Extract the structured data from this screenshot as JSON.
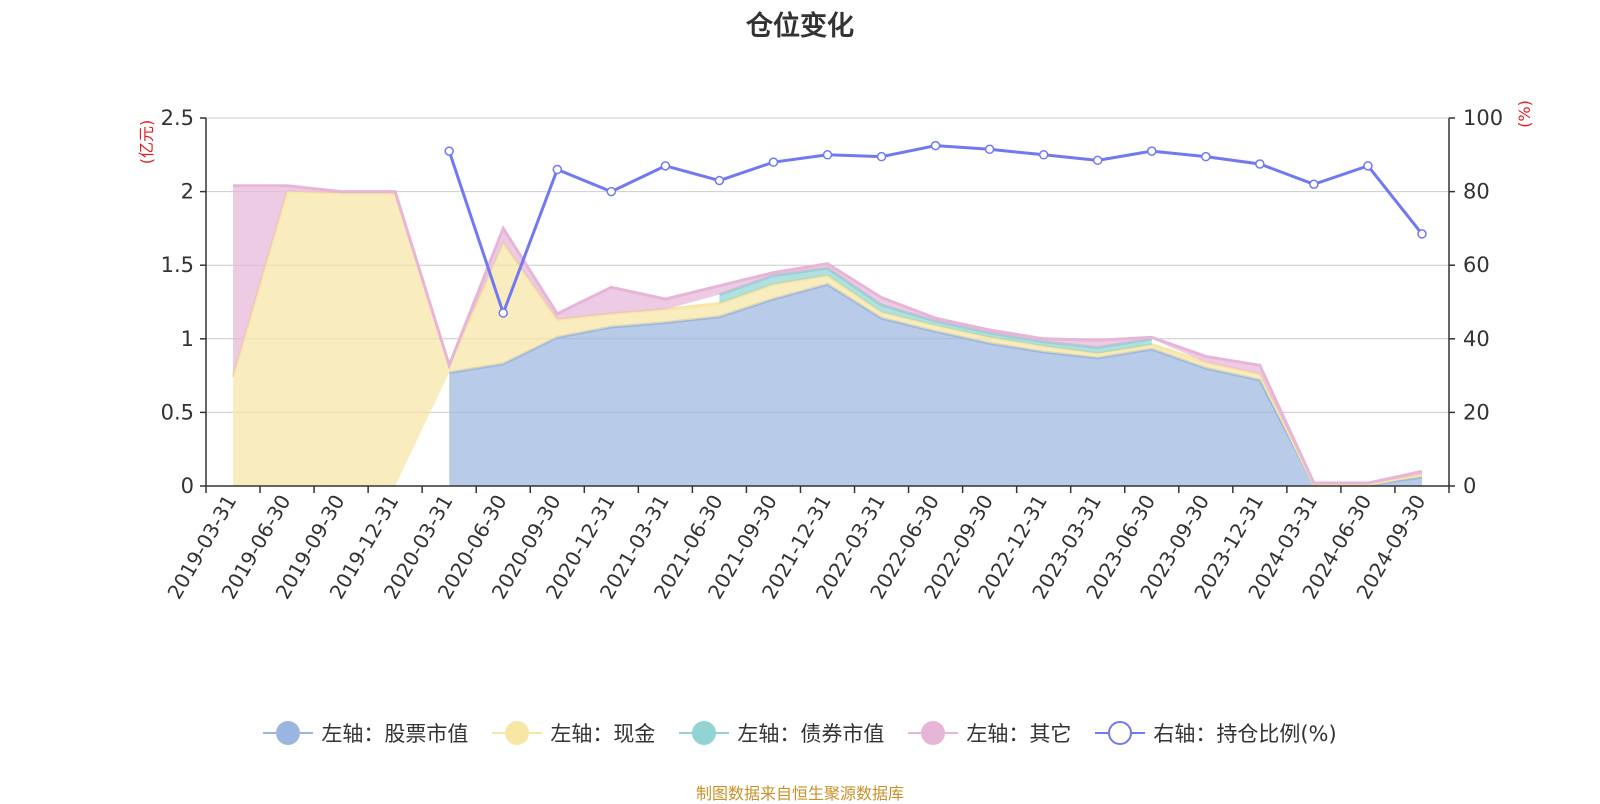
{
  "chart_data": {
    "type": "area",
    "title": "仓位变化",
    "left_axis_unit": "(亿元)",
    "right_axis_unit": "(%)",
    "categories": [
      "2019-03-31",
      "2019-06-30",
      "2019-09-30",
      "2019-12-31",
      "2020-03-31",
      "2020-06-30",
      "2020-09-30",
      "2020-12-31",
      "2021-03-31",
      "2021-06-30",
      "2021-09-30",
      "2021-12-31",
      "2022-03-31",
      "2022-06-30",
      "2022-09-30",
      "2022-12-31",
      "2023-03-31",
      "2023-06-30",
      "2023-09-30",
      "2023-12-31",
      "2024-03-31",
      "2024-06-30",
      "2024-09-30"
    ],
    "left_ylim": [
      0,
      2.5
    ],
    "left_ticks": [
      "0",
      "0.5",
      "1",
      "1.5",
      "2",
      "2.5"
    ],
    "right_ylim": [
      0,
      100
    ],
    "right_ticks": [
      "0",
      "20",
      "40",
      "60",
      "80",
      "100"
    ],
    "series": [
      {
        "name": "左轴：股票市值",
        "axis": "left",
        "color": "#9ab6e0",
        "values": [
          null,
          null,
          null,
          null,
          0.77,
          0.83,
          1.01,
          1.08,
          1.11,
          1.15,
          1.27,
          1.37,
          1.14,
          1.05,
          0.97,
          0.91,
          0.87,
          0.93,
          0.8,
          0.72,
          0.01,
          0.01,
          0.06
        ]
      },
      {
        "name": "左轴：现金",
        "axis": "left",
        "color": "#f7e6a4",
        "values": [
          0.74,
          2.0,
          1.99,
          1.99,
          0.05,
          0.82,
          0.12,
          0.09,
          0.09,
          0.09,
          0.1,
          0.06,
          0.04,
          0.04,
          0.04,
          0.04,
          0.03,
          0.03,
          0.04,
          0.04,
          0.0,
          0.0,
          0.02
        ]
      },
      {
        "name": "左轴：债券市值",
        "axis": "left",
        "color": "#92d3d3",
        "values": [
          null,
          null,
          null,
          null,
          null,
          null,
          null,
          null,
          null,
          0.06,
          0.06,
          0.05,
          0.05,
          0.03,
          0.03,
          0.03,
          0.04,
          0.04,
          null,
          null,
          null,
          null,
          null
        ]
      },
      {
        "name": "左轴：其它",
        "axis": "left",
        "color": "#e7b5d8",
        "values": [
          1.3,
          0.04,
          0.01,
          0.01,
          0.0,
          0.1,
          0.04,
          0.18,
          0.07,
          0.06,
          0.02,
          0.03,
          0.05,
          0.02,
          0.02,
          0.02,
          0.05,
          0.01,
          0.04,
          0.06,
          0.01,
          0.01,
          0.02
        ]
      },
      {
        "name": "右轴：持仓比例(%)",
        "axis": "right",
        "color": "#7079f0",
        "values": [
          null,
          null,
          null,
          null,
          91,
          47,
          86,
          80,
          87,
          83,
          88,
          90,
          89.5,
          92.5,
          91.5,
          90,
          88.5,
          91,
          89.5,
          87.5,
          82,
          87,
          68.5
        ]
      }
    ]
  },
  "legend": {
    "stock": "左轴：股票市值",
    "cash": "左轴：现金",
    "bond": "左轴：债券市值",
    "other": "左轴：其它",
    "ratio": "右轴：持仓比例(%)"
  },
  "footer": "制图数据来自恒生聚源数据库"
}
